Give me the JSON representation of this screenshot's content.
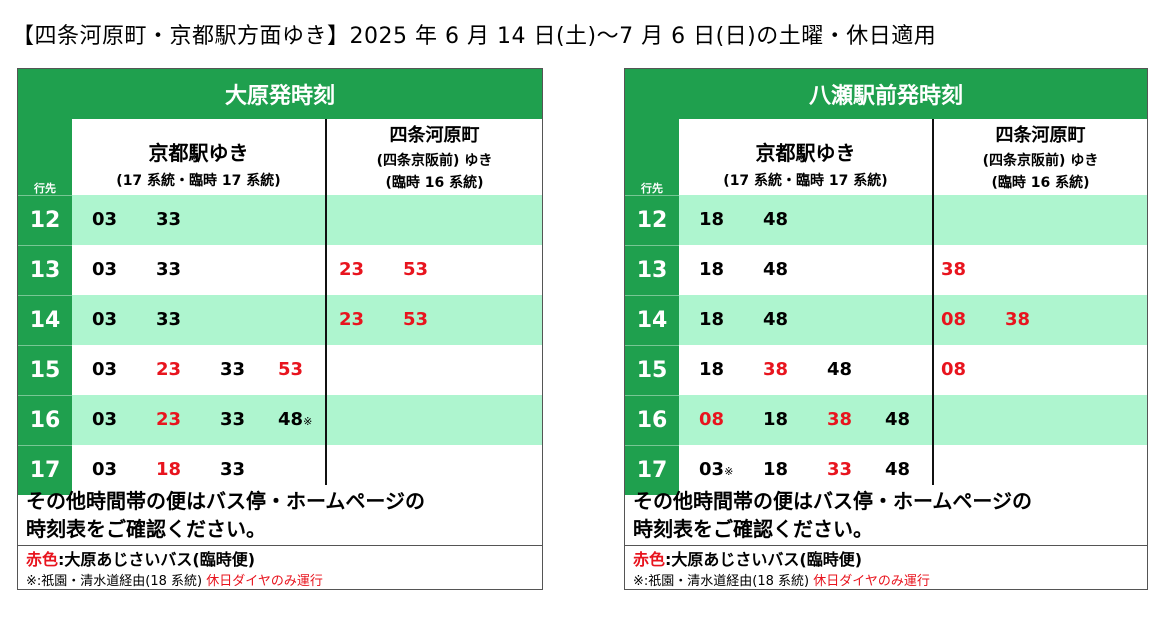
{
  "title": "【四条河原町・京都駅方面ゆき】2025 年 6 月 14 日(土)～7 月 6 日(日)の土曜・休日適用",
  "colors": {
    "header_green": "#1fa04e",
    "row_shade": "#aef5cf",
    "red": "#e8141e"
  },
  "panels": [
    {
      "header": "大原発時刻",
      "hour_label": "行先",
      "dest_a": {
        "main": "京都駅ゆき",
        "sub": "(17 系統・臨時 17 系統)"
      },
      "dest_b": {
        "main": "四条河原町",
        "line2": "(四条京阪前) ゆき",
        "line3": "(臨時 16 系統)"
      },
      "rows": [
        {
          "hour": "12",
          "a": [
            {
              "t": "03",
              "red": false
            },
            {
              "t": "33",
              "red": false
            }
          ],
          "b": []
        },
        {
          "hour": "13",
          "a": [
            {
              "t": "03",
              "red": false
            },
            {
              "t": "33",
              "red": false
            }
          ],
          "b": [
            {
              "t": "23",
              "red": true
            },
            {
              "t": "53",
              "red": true
            }
          ]
        },
        {
          "hour": "14",
          "a": [
            {
              "t": "03",
              "red": false
            },
            {
              "t": "33",
              "red": false
            }
          ],
          "b": [
            {
              "t": "23",
              "red": true
            },
            {
              "t": "53",
              "red": true
            }
          ]
        },
        {
          "hour": "15",
          "a": [
            {
              "t": "03",
              "red": false
            },
            {
              "t": "23",
              "red": true
            },
            {
              "t": "33",
              "red": false
            },
            {
              "t": "53",
              "red": true
            }
          ],
          "b": []
        },
        {
          "hour": "16",
          "a": [
            {
              "t": "03",
              "red": false
            },
            {
              "t": "23",
              "red": true
            },
            {
              "t": "33",
              "red": false
            },
            {
              "t": "48",
              "red": false,
              "mark": "※"
            }
          ],
          "b": []
        },
        {
          "hour": "17",
          "a": [
            {
              "t": "03",
              "red": false
            },
            {
              "t": "18",
              "red": true
            },
            {
              "t": "33",
              "red": false
            }
          ],
          "b": []
        }
      ],
      "note_line1": "その他時間帯の便はバス停・ホームページの",
      "note_line2": "時刻表をご確認ください。",
      "legend_red": "赤色",
      "legend_rest": ":大原あじさいバス(臨時便)",
      "footnote": "※:祇園・清水道経由(18 系統)",
      "footnote_red": "休日ダイヤのみ運行"
    },
    {
      "header": "八瀬駅前発時刻",
      "hour_label": "行先",
      "dest_a": {
        "main": "京都駅ゆき",
        "sub": "(17 系統・臨時 17 系統)"
      },
      "dest_b": {
        "main": "四条河原町",
        "line2": "(四条京阪前) ゆき",
        "line3": "(臨時 16 系統)"
      },
      "rows": [
        {
          "hour": "12",
          "a": [
            {
              "t": "18",
              "red": false
            },
            {
              "t": "48",
              "red": false
            }
          ],
          "b": []
        },
        {
          "hour": "13",
          "a": [
            {
              "t": "18",
              "red": false
            },
            {
              "t": "48",
              "red": false
            }
          ],
          "b": [
            {
              "t": "38",
              "red": true
            }
          ]
        },
        {
          "hour": "14",
          "a": [
            {
              "t": "18",
              "red": false
            },
            {
              "t": "48",
              "red": false
            }
          ],
          "b": [
            {
              "t": "08",
              "red": true
            },
            {
              "t": "38",
              "red": true
            }
          ]
        },
        {
          "hour": "15",
          "a": [
            {
              "t": "18",
              "red": false
            },
            {
              "t": "38",
              "red": true
            },
            {
              "t": "48",
              "red": false
            }
          ],
          "b": [
            {
              "t": "08",
              "red": true
            }
          ]
        },
        {
          "hour": "16",
          "a": [
            {
              "t": "08",
              "red": true
            },
            {
              "t": "18",
              "red": false
            },
            {
              "t": "38",
              "red": true
            },
            {
              "t": "48",
              "red": false
            }
          ],
          "b": []
        },
        {
          "hour": "17",
          "a": [
            {
              "t": "03",
              "red": false,
              "mark": "※"
            },
            {
              "t": "18",
              "red": false
            },
            {
              "t": "33",
              "red": true
            },
            {
              "t": "48",
              "red": false
            }
          ],
          "b": []
        }
      ],
      "note_line1": "その他時間帯の便はバス停・ホームページの",
      "note_line2": "時刻表をご確認ください。",
      "legend_red": "赤色",
      "legend_rest": ":大原あじさいバス(臨時便)",
      "footnote": "※:祇園・清水道経由(18 系統)",
      "footnote_red": "休日ダイヤのみ運行"
    }
  ]
}
